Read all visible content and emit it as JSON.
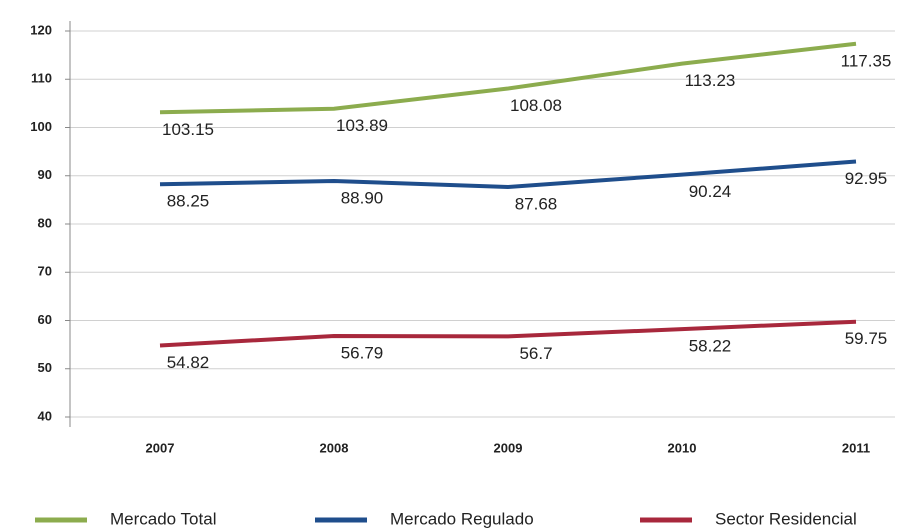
{
  "chart_data": {
    "type": "line",
    "categories": [
      "2007",
      "2008",
      "2009",
      "2010",
      "2011"
    ],
    "series": [
      {
        "name": "Mercado Total",
        "color": "#8cac4e",
        "values": [
          103.15,
          103.89,
          108.08,
          113.23,
          117.35
        ],
        "value_labels": [
          "103.15",
          "103.89",
          "108.08",
          "113.23",
          "117.35"
        ]
      },
      {
        "name": "Mercado Regulado",
        "color": "#1f4e8c",
        "values": [
          88.25,
          88.9,
          87.68,
          90.24,
          92.95
        ],
        "value_labels": [
          "88.25",
          "88.90",
          "87.68",
          "90.24",
          "92.95"
        ]
      },
      {
        "name": "Sector Residencial",
        "color": "#a8283c",
        "values": [
          54.82,
          56.79,
          56.7,
          58.22,
          59.75
        ],
        "value_labels": [
          "54.82",
          "56.79",
          "56.7",
          "58.22",
          "59.75"
        ]
      }
    ],
    "ylim": [
      40,
      120
    ],
    "yticks": [
      40,
      50,
      60,
      70,
      80,
      90,
      100,
      110,
      120
    ],
    "grid": true
  }
}
